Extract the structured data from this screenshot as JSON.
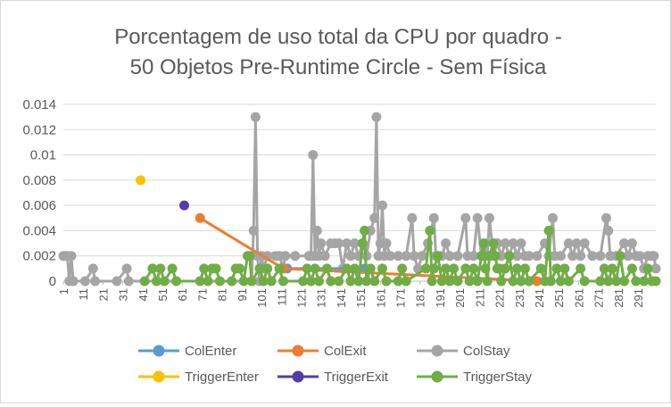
{
  "chart_data": {
    "type": "line",
    "title": "Porcentagem de uso total da CPU por quadro -",
    "subtitle": "50 Objetos Pre-Runtime Circle - Sem Física",
    "xlabel": "",
    "ylabel": "",
    "ylim": [
      0,
      0.014
    ],
    "yticks": [
      "0",
      "0.002",
      "0.004",
      "0.006",
      "0.008",
      "0.01",
      "0.012",
      "0.014"
    ],
    "xlim": [
      1,
      300
    ],
    "xticks": [
      "1",
      "11",
      "21",
      "31",
      "41",
      "51",
      "61",
      "71",
      "81",
      "91",
      "101",
      "111",
      "121",
      "131",
      "141",
      "151",
      "161",
      "171",
      "181",
      "191",
      "201",
      "211",
      "221",
      "231",
      "241",
      "251",
      "261",
      "271",
      "281",
      "291"
    ],
    "grid": true,
    "legend": "bottom",
    "series": [
      {
        "name": "ColEnter",
        "color": "#5b9bd5",
        "points": [
          [
            114,
            0.001
          ],
          [
            153,
            0.001
          ]
        ]
      },
      {
        "name": "ColExit",
        "color": "#ed7d31",
        "points": [
          [
            70,
            0.005
          ],
          [
            112,
            0.001
          ],
          [
            240,
            0
          ]
        ]
      },
      {
        "name": "ColStay",
        "color": "#a5a5a5",
        "points": [
          [
            1,
            0.002
          ],
          [
            2,
            0.002
          ],
          [
            3,
            0.002
          ],
          [
            4,
            0
          ],
          [
            5,
            0.002
          ],
          [
            6,
            0
          ],
          [
            12,
            0
          ],
          [
            16,
            0.001
          ],
          [
            17,
            0
          ],
          [
            28,
            0
          ],
          [
            33,
            0.001
          ],
          [
            34,
            0
          ],
          [
            96,
            0
          ],
          [
            97,
            0.004
          ],
          [
            98,
            0.013
          ],
          [
            99,
            0.002
          ],
          [
            100,
            0
          ],
          [
            101,
            0.002
          ],
          [
            102,
            0.001
          ],
          [
            104,
            0.002
          ],
          [
            108,
            0.002
          ],
          [
            110,
            0.002
          ],
          [
            112,
            0.001
          ],
          [
            113,
            0.002
          ],
          [
            118,
            0.002
          ],
          [
            125,
            0.002
          ],
          [
            126,
            0.002
          ],
          [
            127,
            0.01
          ],
          [
            128,
            0.002
          ],
          [
            129,
            0.004
          ],
          [
            130,
            0.002
          ],
          [
            131,
            0.003
          ],
          [
            133,
            0.002
          ],
          [
            136,
            0.003
          ],
          [
            138,
            0.003
          ],
          [
            140,
            0.003
          ],
          [
            142,
            0.001
          ],
          [
            144,
            0.003
          ],
          [
            146,
            0.002
          ],
          [
            148,
            0.003
          ],
          [
            150,
            0.002
          ],
          [
            152,
            0.003
          ],
          [
            154,
            0.002
          ],
          [
            156,
            0.004
          ],
          [
            158,
            0.005
          ],
          [
            159,
            0.013
          ],
          [
            160,
            0.002
          ],
          [
            161,
            0.003
          ],
          [
            162,
            0.006
          ],
          [
            163,
            0.002
          ],
          [
            164,
            0.003
          ],
          [
            166,
            0.002
          ],
          [
            170,
            0.002
          ],
          [
            174,
            0.002
          ],
          [
            177,
            0.005
          ],
          [
            178,
            0.002
          ],
          [
            180,
            0.001
          ],
          [
            182,
            0.002
          ],
          [
            185,
            0.003
          ],
          [
            188,
            0.005
          ],
          [
            189,
            0.002
          ],
          [
            192,
            0.002
          ],
          [
            194,
            0.003
          ],
          [
            196,
            0.002
          ],
          [
            200,
            0.002
          ],
          [
            204,
            0.005
          ],
          [
            205,
            0.002
          ],
          [
            208,
            0.002
          ],
          [
            210,
            0.005
          ],
          [
            212,
            0.002
          ],
          [
            214,
            0.003
          ],
          [
            215,
            0.002
          ],
          [
            216,
            0.005
          ],
          [
            218,
            0.002
          ],
          [
            220,
            0.003
          ],
          [
            222,
            0.002
          ],
          [
            224,
            0.003
          ],
          [
            226,
            0.002
          ],
          [
            228,
            0.003
          ],
          [
            230,
            0.002
          ],
          [
            232,
            0.003
          ],
          [
            234,
            0.002
          ],
          [
            236,
            0.002
          ],
          [
            240,
            0.002
          ],
          [
            244,
            0.003
          ],
          [
            246,
            0.002
          ],
          [
            248,
            0.005
          ],
          [
            249,
            0.002
          ],
          [
            252,
            0.002
          ],
          [
            256,
            0.003
          ],
          [
            258,
            0.002
          ],
          [
            260,
            0.003
          ],
          [
            262,
            0.002
          ],
          [
            264,
            0.003
          ],
          [
            268,
            0.002
          ],
          [
            272,
            0.002
          ],
          [
            275,
            0.005
          ],
          [
            276,
            0.004
          ],
          [
            277,
            0.002
          ],
          [
            280,
            0.002
          ],
          [
            284,
            0.003
          ],
          [
            286,
            0.002
          ],
          [
            288,
            0.003
          ],
          [
            290,
            0.002
          ],
          [
            292,
            0.002
          ],
          [
            294,
            0.001
          ],
          [
            296,
            0.002
          ],
          [
            298,
            0.002
          ],
          [
            299,
            0.002
          ],
          [
            300,
            0.001
          ]
        ]
      },
      {
        "name": "TriggerEnter",
        "color": "#ffc000",
        "points": [
          [
            40,
            0.008
          ]
        ]
      },
      {
        "name": "TriggerExit",
        "color": "#4d3fa6",
        "points": [
          [
            62,
            0.006
          ]
        ]
      },
      {
        "name": "TriggerStay",
        "color": "#70ad47",
        "points": [
          [
            42,
            0
          ],
          [
            46,
            0.001
          ],
          [
            48,
            0
          ],
          [
            50,
            0.001
          ],
          [
            52,
            0
          ],
          [
            56,
            0.001
          ],
          [
            58,
            0
          ],
          [
            70,
            0
          ],
          [
            72,
            0.001
          ],
          [
            74,
            0
          ],
          [
            76,
            0.001
          ],
          [
            78,
            0.001
          ],
          [
            80,
            0
          ],
          [
            86,
            0
          ],
          [
            88,
            0.001
          ],
          [
            90,
            0.001
          ],
          [
            92,
            0
          ],
          [
            94,
            0.002
          ],
          [
            95,
            0.002
          ],
          [
            96,
            0
          ],
          [
            100,
            0.001
          ],
          [
            102,
            0
          ],
          [
            104,
            0.001
          ],
          [
            106,
            0
          ],
          [
            110,
            0.001
          ],
          [
            112,
            0
          ],
          [
            122,
            0
          ],
          [
            124,
            0.001
          ],
          [
            126,
            0
          ],
          [
            128,
            0.001
          ],
          [
            130,
            0
          ],
          [
            134,
            0.001
          ],
          [
            136,
            0
          ],
          [
            140,
            0
          ],
          [
            144,
            0.001
          ],
          [
            146,
            0
          ],
          [
            148,
            0.001
          ],
          [
            150,
            0
          ],
          [
            152,
            0.003
          ],
          [
            153,
            0.004
          ],
          [
            154,
            0
          ],
          [
            156,
            0.001
          ],
          [
            158,
            0
          ],
          [
            162,
            0.001
          ],
          [
            164,
            0
          ],
          [
            170,
            0
          ],
          [
            172,
            0.001
          ],
          [
            174,
            0
          ],
          [
            184,
            0.001
          ],
          [
            186,
            0.004
          ],
          [
            187,
            0
          ],
          [
            188,
            0.001
          ],
          [
            190,
            0.002
          ],
          [
            192,
            0
          ],
          [
            194,
            0.001
          ],
          [
            196,
            0
          ],
          [
            198,
            0.001
          ],
          [
            200,
            0
          ],
          [
            204,
            0.001
          ],
          [
            206,
            0
          ],
          [
            208,
            0.001
          ],
          [
            210,
            0
          ],
          [
            212,
            0.002
          ],
          [
            213,
            0.003
          ],
          [
            214,
            0.001
          ],
          [
            215,
            0
          ],
          [
            216,
            0.002
          ],
          [
            218,
            0.003
          ],
          [
            219,
            0.002
          ],
          [
            220,
            0.001
          ],
          [
            221,
            0.001
          ],
          [
            222,
            0
          ],
          [
            224,
            0.001
          ],
          [
            226,
            0.002
          ],
          [
            228,
            0
          ],
          [
            230,
            0.001
          ],
          [
            232,
            0
          ],
          [
            234,
            0.001
          ],
          [
            236,
            0
          ],
          [
            242,
            0.001
          ],
          [
            244,
            0
          ],
          [
            246,
            0.004
          ],
          [
            247,
            0
          ],
          [
            250,
            0.001
          ],
          [
            252,
            0
          ],
          [
            254,
            0.001
          ],
          [
            256,
            0
          ],
          [
            262,
            0.001
          ],
          [
            264,
            0
          ],
          [
            272,
            0
          ],
          [
            274,
            0.001
          ],
          [
            276,
            0
          ],
          [
            278,
            0.001
          ],
          [
            280,
            0
          ],
          [
            282,
            0.002
          ],
          [
            284,
            0
          ],
          [
            288,
            0.001
          ],
          [
            290,
            0
          ],
          [
            294,
            0
          ],
          [
            296,
            0.001
          ],
          [
            298,
            0
          ],
          [
            300,
            0
          ]
        ]
      }
    ]
  }
}
